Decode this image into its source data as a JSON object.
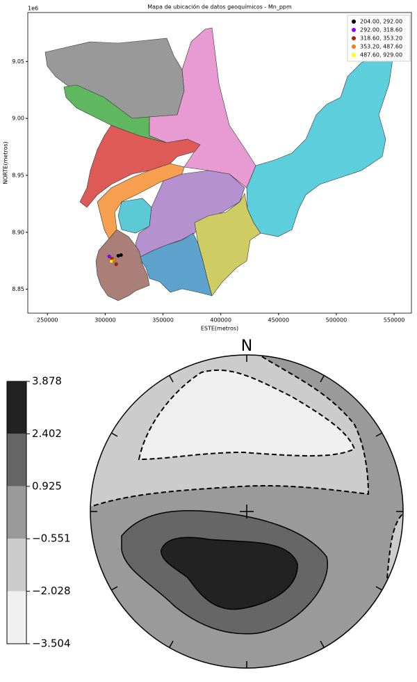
{
  "chart_data": [
    {
      "type": "scatter",
      "title": "Mapa de ubicación de datos geoquímicos - Mn_ppm",
      "xlabel": "ESTE(metros)",
      "ylabel": "NORTE(metros)",
      "y_offset_label": "1e6",
      "xlim": [
        233000,
        565000
      ],
      "ylim": [
        8.829,
        9.093
      ],
      "xticks": [
        250000,
        300000,
        350000,
        400000,
        450000,
        500000,
        550000
      ],
      "yticks": [
        8.85,
        {
          "value": 8.9,
          "label": "8.90"
        },
        8.95,
        {
          "value": 9,
          "label": "9.00"
        },
        9.05
      ],
      "legend": "upper right",
      "series": [
        {
          "name": "204.00, 292.00",
          "color": "#000000",
          "x": [
            311300,
            313700
          ],
          "y": [
            8.8794,
            8.88
          ]
        },
        {
          "name": "292.00, 318.60",
          "color": "#8b00ff",
          "x": [
            303500
          ],
          "y": [
            8.8788
          ]
        },
        {
          "name": "318.60, 353.20",
          "color": "#b22000",
          "x": [
            305900,
            309500
          ],
          "y": [
            8.8768,
            8.872
          ]
        },
        {
          "name": "353.20, 487.60",
          "color": "#f07f00",
          "x": [
            307700
          ],
          "y": [
            8.8757
          ]
        },
        {
          "name": "487.60, 929.00",
          "color": "#ffff00",
          "x": [
            305300
          ],
          "y": [
            8.8745
          ]
        }
      ]
    },
    {
      "type": "contour",
      "north_label": "N",
      "ylim": [
        -3.504,
        3.878
      ],
      "yticks": [
        {
          "value": 3.878,
          "label": "3.878"
        },
        {
          "value": 2.402,
          "label": "2.402"
        },
        {
          "value": 0.925,
          "label": "0.925"
        },
        {
          "value": -0.551,
          "label": "−0.551"
        },
        {
          "value": -2.028,
          "label": "−2.028"
        },
        {
          "value": -3.504,
          "label": "−3.504"
        }
      ],
      "colors": [
        "#222222",
        "#666666",
        "#9a9a9a",
        "#cccccc",
        "#f0f0f0"
      ]
    }
  ]
}
